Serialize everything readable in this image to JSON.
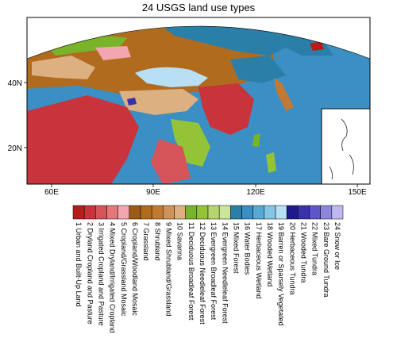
{
  "title": "24 USGS land use types",
  "map": {
    "lon_ticks": [
      "60E",
      "90E",
      "120E",
      "150E"
    ],
    "lat_ticks": [
      "40N",
      "20N"
    ],
    "inset_label": "",
    "colors": {
      "ocean": "#3b8fc4",
      "deep_ocean": "#2f7fb8",
      "outside": "#ffffff",
      "frame": "#000000"
    }
  },
  "legend": {
    "classes": [
      {
        "id": 1,
        "label": "1 Urban and Built-Up Land",
        "color": "#b71c1c"
      },
      {
        "id": 2,
        "label": "2 Dryland Cropland and Pasture",
        "color": "#c9333b"
      },
      {
        "id": 3,
        "label": "3 Irrigated Cropland and Pasture",
        "color": "#d4545a"
      },
      {
        "id": 4,
        "label": "4 Mixed Dryland/Irrigated Cropland",
        "color": "#e3787c"
      },
      {
        "id": 5,
        "label": "5 Cropland/Grassland Mosaic",
        "color": "#f4a6b0"
      },
      {
        "id": 6,
        "label": "6 Cropland/Woodland Mosaic",
        "color": "#9c5a16"
      },
      {
        "id": 7,
        "label": "7 Grassland",
        "color": "#b06b1e"
      },
      {
        "id": 8,
        "label": "8 Shrubland",
        "color": "#c27a33"
      },
      {
        "id": 9,
        "label": "9 Mixed Shrubland/Grassland",
        "color": "#cf935a"
      },
      {
        "id": 10,
        "label": "10 Savanna",
        "color": "#ddb081"
      },
      {
        "id": 11,
        "label": "11 Deciduous Broadleaf Forest",
        "color": "#78b32a"
      },
      {
        "id": 12,
        "label": "12 Deciduous Needleleaf Forest",
        "color": "#93c437"
      },
      {
        "id": 13,
        "label": "13 Evergreen Broadleaf Forest",
        "color": "#b4d66a"
      },
      {
        "id": 14,
        "label": "14 Evergreen Needleleaf Forest",
        "color": "#cde59a"
      },
      {
        "id": 15,
        "label": "15 Mixed Forest",
        "color": "#2a7fa8"
      },
      {
        "id": 16,
        "label": "16 Water Bodies",
        "color": "#3b8fc4"
      },
      {
        "id": 17,
        "label": "17 Herbaceous Wetland",
        "color": "#56a8d6"
      },
      {
        "id": 18,
        "label": "18 Wooded Wetland",
        "color": "#86c4e6"
      },
      {
        "id": 19,
        "label": "19 Barren or Sparsely Vegetated",
        "color": "#b8dff3"
      },
      {
        "id": 20,
        "label": "20 Herbaceous Tundra",
        "color": "#1c1a8c"
      },
      {
        "id": 21,
        "label": "21 Wooded Tundra",
        "color": "#3a32ab"
      },
      {
        "id": 22,
        "label": "22 Mixed Tundra",
        "color": "#5e55c7"
      },
      {
        "id": 23,
        "label": "23 Bare Ground Tundra",
        "color": "#8d86dd"
      },
      {
        "id": 24,
        "label": "24 Snow or Ice",
        "color": "#bdb9f0"
      }
    ]
  }
}
